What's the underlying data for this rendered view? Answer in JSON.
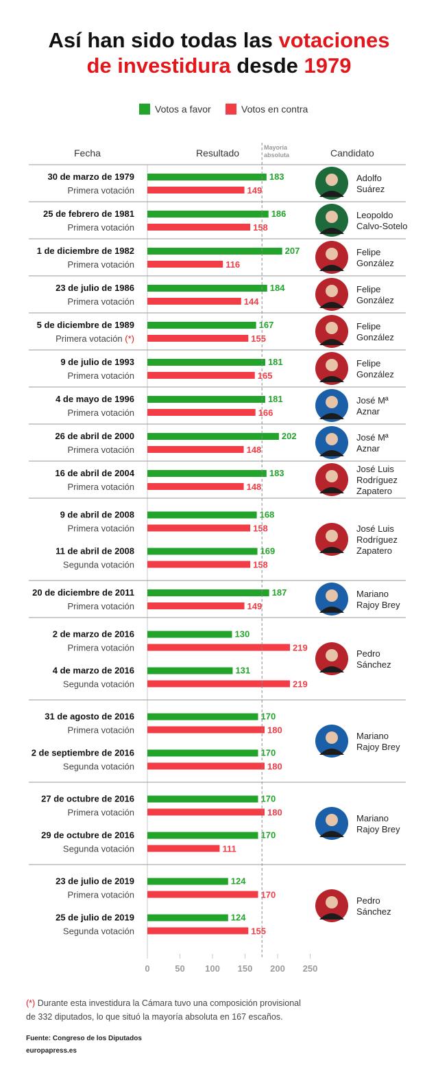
{
  "title": {
    "part1": "Así han sido todas las",
    "part2": "votaciones",
    "part3": "de investidura",
    "part4": "desde",
    "part5": "1979"
  },
  "legend": {
    "favor": "Votos a favor",
    "contra": "Votos en contra"
  },
  "headers": {
    "fecha": "Fecha",
    "resultado": "Resultado",
    "mayoria1": "Mayoría",
    "mayoria2": "absoluta",
    "candidato": "Candidato"
  },
  "colors": {
    "favor": "#22a42a",
    "contra": "#f23d46",
    "title_accent": "#e3161b"
  },
  "footnote": {
    "asterisk": "(*)",
    "line1": "Durante esta investidura la Cámara tuvo una composición provisional",
    "line2": "de 332 diputados, lo que situó la mayoría absoluta en 167 escaños."
  },
  "fuente": "Fuente: Congreso de los Diputados",
  "brand": "europapress.es",
  "chart_data": {
    "type": "bar",
    "orientation": "horizontal",
    "xlim": [
      0,
      250
    ],
    "x_ticks": [
      0,
      50,
      100,
      150,
      200,
      250
    ],
    "reference_line": {
      "value": 176,
      "label": "Mayoría absoluta"
    },
    "series": [
      {
        "name": "Votos a favor",
        "color": "#22a42a"
      },
      {
        "name": "Votos en contra",
        "color": "#f23d46"
      }
    ],
    "groups": [
      {
        "candidate": [
          "Adolfo",
          "Suárez"
        ],
        "photo": "suarez-portrait",
        "votes": [
          {
            "date": "30 de marzo de 1979",
            "label": "Primera votación",
            "favor": 183,
            "contra": 149
          }
        ]
      },
      {
        "candidate": [
          "Leopoldo",
          "Calvo-Sotelo"
        ],
        "photo": "calvo-sotelo-portrait",
        "votes": [
          {
            "date": "25 de febrero de 1981",
            "label": "Primera votación",
            "favor": 186,
            "contra": 158
          }
        ]
      },
      {
        "candidate": [
          "Felipe",
          "González"
        ],
        "photo": "gonzalez-portrait",
        "votes": [
          {
            "date": "1 de diciembre de 1982",
            "label": "Primera votación",
            "favor": 207,
            "contra": 116
          }
        ]
      },
      {
        "candidate": [
          "Felipe",
          "González"
        ],
        "photo": "gonzalez-portrait",
        "votes": [
          {
            "date": "23 de julio de 1986",
            "label": "Primera votación",
            "favor": 184,
            "contra": 144
          }
        ]
      },
      {
        "candidate": [
          "Felipe",
          "González"
        ],
        "photo": "gonzalez-portrait",
        "votes": [
          {
            "date": "5 de diciembre de 1989",
            "label": "Primera votación",
            "label_note": "(*)",
            "favor": 167,
            "contra": 155
          }
        ]
      },
      {
        "candidate": [
          "Felipe",
          "González"
        ],
        "photo": "gonzalez-portrait",
        "votes": [
          {
            "date": "9 de julio de 1993",
            "label": "Primera votación",
            "favor": 181,
            "contra": 165
          }
        ]
      },
      {
        "candidate": [
          "José Mª",
          "Aznar"
        ],
        "photo": "aznar-portrait",
        "votes": [
          {
            "date": "4 de mayo de 1996",
            "label": "Primera votación",
            "favor": 181,
            "contra": 166
          }
        ]
      },
      {
        "candidate": [
          "José Mª",
          "Aznar"
        ],
        "photo": "aznar-portrait",
        "votes": [
          {
            "date": "26 de abril de 2000",
            "label": "Primera votación",
            "favor": 202,
            "contra": 148
          }
        ]
      },
      {
        "candidate": [
          "José Luis",
          "Rodríguez",
          "Zapatero"
        ],
        "photo": "zapatero-portrait",
        "votes": [
          {
            "date": "16 de abril de 2004",
            "label": "Primera votación",
            "favor": 183,
            "contra": 148
          }
        ]
      },
      {
        "candidate": [
          "José Luis",
          "Rodríguez",
          "Zapatero"
        ],
        "photo": "zapatero-portrait",
        "votes": [
          {
            "date": "9 de abril de 2008",
            "label": "Primera votación",
            "favor": 168,
            "contra": 158
          },
          {
            "date": "11 de abril de 2008",
            "label": "Segunda votación",
            "favor": 169,
            "contra": 158
          }
        ]
      },
      {
        "candidate": [
          "Mariano",
          "Rajoy Brey"
        ],
        "photo": "rajoy-portrait",
        "votes": [
          {
            "date": "20 de diciembre de 2011",
            "label": "Primera votación",
            "favor": 187,
            "contra": 149
          }
        ]
      },
      {
        "candidate": [
          "Pedro",
          "Sánchez"
        ],
        "photo": "sanchez-portrait",
        "votes": [
          {
            "date": "2 de marzo de 2016",
            "label": "Primera votación",
            "favor": 130,
            "contra": 219
          },
          {
            "date": "4 de marzo de 2016",
            "label": "Segunda votación",
            "favor": 131,
            "contra": 219
          }
        ]
      },
      {
        "candidate": [
          "Mariano",
          "Rajoy Brey"
        ],
        "photo": "rajoy-portrait",
        "votes": [
          {
            "date": "31 de agosto de 2016",
            "label": "Primera votación",
            "favor": 170,
            "contra": 180
          },
          {
            "date": "2 de septiembre de 2016",
            "label": "Segunda votación",
            "favor": 170,
            "contra": 180
          }
        ]
      },
      {
        "candidate": [
          "Mariano",
          "Rajoy Brey"
        ],
        "photo": "rajoy-portrait",
        "votes": [
          {
            "date": "27 de octubre de 2016",
            "label": "Primera votación",
            "favor": 170,
            "contra": 180
          },
          {
            "date": "29 de octubre de 2016",
            "label": "Segunda votación",
            "favor": 170,
            "contra": 111
          }
        ]
      },
      {
        "candidate": [
          "Pedro",
          "Sánchez"
        ],
        "photo": "sanchez-portrait",
        "votes": [
          {
            "date": "23 de julio de 2019",
            "label": "Primera votación",
            "favor": 124,
            "contra": 170
          },
          {
            "date": "25 de julio de 2019",
            "label": "Segunda votación",
            "favor": 124,
            "contra": 155
          }
        ]
      }
    ]
  }
}
